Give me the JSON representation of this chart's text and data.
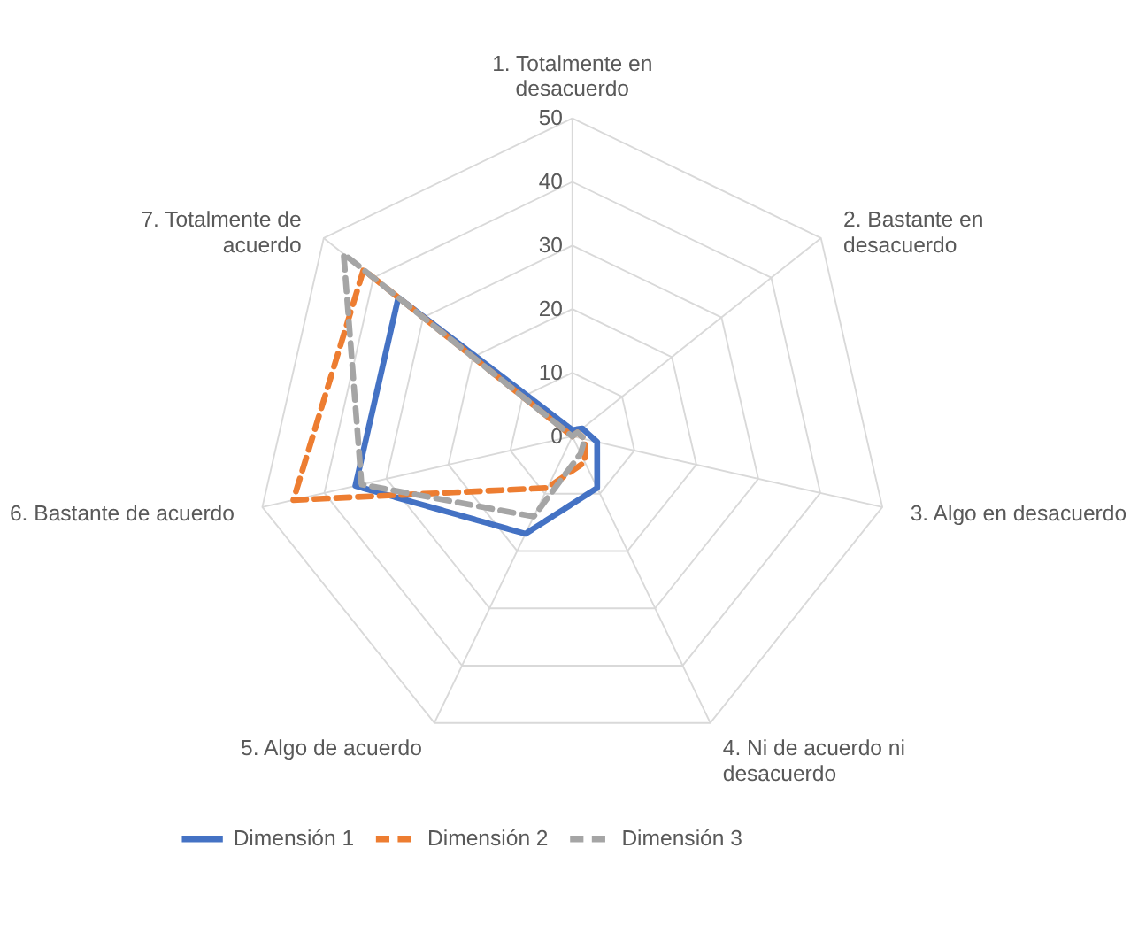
{
  "chart_data": {
    "type": "radar",
    "categories": [
      "1. Totalmente en desacuerdo",
      "2. Bastante en desacuerdo",
      "3. Algo en desacuerdo",
      "4. Ni de acuerdo ni desacuerdo",
      "5. Algo de acuerdo",
      "6. Bastante de acuerdo",
      "7. Totalmente de acuerdo"
    ],
    "series": [
      {
        "name": "Dimensión 1",
        "color": "#4472c4",
        "line_style": "solid",
        "values": [
          1,
          2,
          4,
          9,
          17,
          35,
          35
        ]
      },
      {
        "name": "Dimensión 2",
        "color": "#ed7d31",
        "line_style": "dashed",
        "values": [
          0,
          1,
          2,
          4.5,
          9,
          45,
          42
        ]
      },
      {
        "name": "Dimensión 3",
        "color": "#a5a5a5",
        "line_style": "dashed",
        "values": [
          0,
          1,
          2,
          3,
          14,
          34,
          46
        ]
      }
    ],
    "ylim": [
      0,
      50
    ],
    "yticks": [
      0,
      10,
      20,
      30,
      40,
      50
    ],
    "grid": true,
    "legend": "bottom",
    "marker": "none"
  }
}
